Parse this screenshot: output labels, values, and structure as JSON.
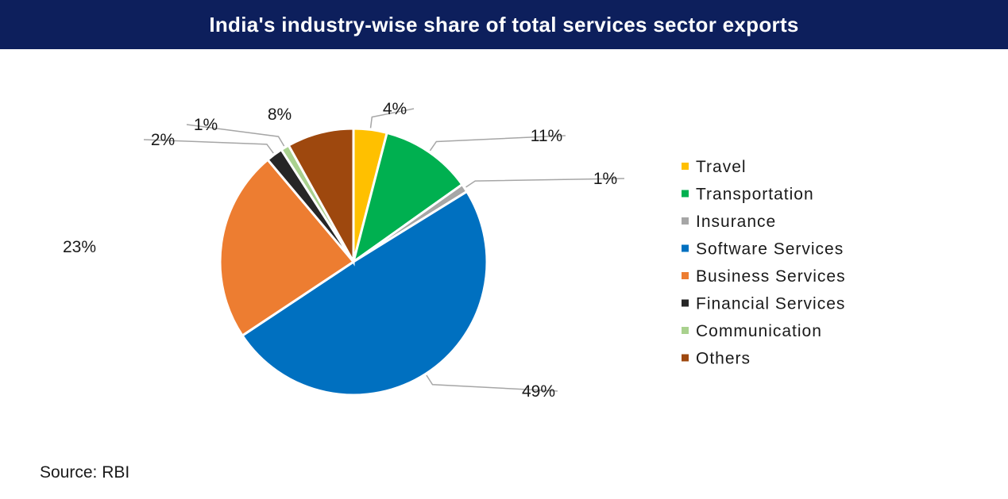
{
  "title": "India's industry-wise share of total services sector exports",
  "source": "Source: RBI",
  "chart_data": {
    "type": "pie",
    "categories": [
      "Travel",
      "Transportation",
      "Insurance",
      "Software Services",
      "Business Services",
      "Financial Services",
      "Communication",
      "Others"
    ],
    "values": [
      4,
      11,
      1,
      49,
      23,
      2,
      1,
      8
    ],
    "labels": [
      "4%",
      "11%",
      "1%",
      "49%",
      "23%",
      "2%",
      "1%",
      "8%"
    ],
    "colors": [
      "#ffc000",
      "#00b050",
      "#a6a6a6",
      "#0070c0",
      "#ed7d31",
      "#262626",
      "#a9d18e",
      "#9e480e"
    ],
    "legend_position": "right"
  }
}
